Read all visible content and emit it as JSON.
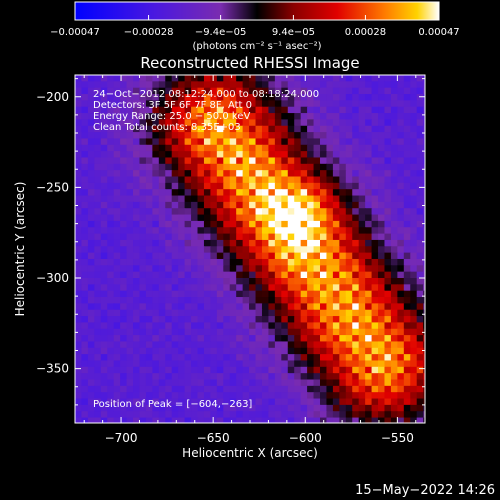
{
  "chart_data": {
    "type": "heatmap",
    "title": "Reconstructed RHESSI Image",
    "xlabel": "Heliocentric X (arcsec)",
    "ylabel": "Heliocentric Y (arcsec)",
    "xlim": [
      -725,
      -535
    ],
    "ylim": [
      -380,
      -188
    ],
    "x_ticks": [
      -700,
      -650,
      -600,
      -550
    ],
    "y_ticks": [
      -200,
      -250,
      -300,
      -350
    ],
    "x_tick_labels": [
      "−700",
      "−650",
      "−600",
      "−550"
    ],
    "y_tick_labels": [
      "−200",
      "−250",
      "−300",
      "−350"
    ],
    "annotations": [
      "24−Oct−2012 08:12:24.000 to 08:18:24.000",
      "Detectors: 3F 5F 6F 7F 8F, Att 0",
      "Energy Range: 25.0 − 50.0 keV",
      "Clean     Total counts: 8.35E+03"
    ],
    "peak_label": "Position of Peak = [−604,−263]",
    "peak": [
      -604,
      -263
    ],
    "source_axis": {
      "start": [
        -650,
        -215
      ],
      "end": [
        -560,
        -345
      ],
      "width": 24
    },
    "colorbar": {
      "min": -0.00047,
      "max": 0.00047,
      "tick_values": [
        -0.00047,
        -0.00028,
        -9.4e-05,
        9.4e-05,
        0.00028,
        0.00047
      ],
      "tick_labels": [
        "−0.00047",
        "−0.00028",
        "−9.4e−05",
        "9.4e−05",
        "0.00028",
        "0.00047"
      ],
      "unit_label": "(photons cm⁻² s⁻¹ asec⁻²)"
    }
  },
  "timestamp": "15−May−2022 14:26"
}
